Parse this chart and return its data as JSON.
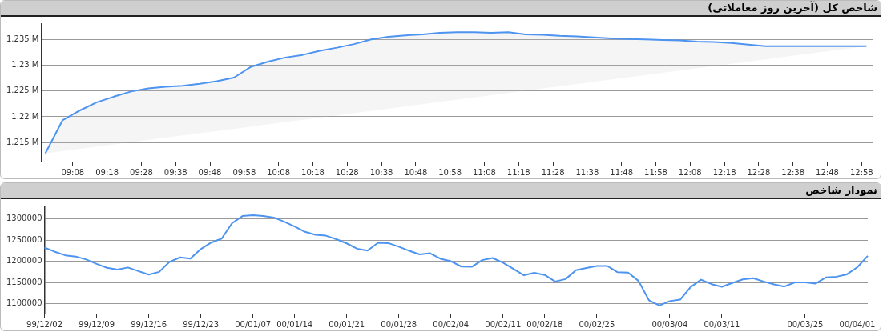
{
  "chart_data": [
    {
      "type": "area",
      "title": "شاخص کل (آخرین روز معاملاتی)",
      "series": [
        {
          "color": "#4d94f0",
          "x": [
            9.0,
            9.0833,
            9.1667,
            9.25,
            9.3333,
            9.4167,
            9.5,
            9.5833,
            9.6667,
            9.75,
            9.8333,
            9.9167,
            10.0,
            10.0833,
            10.1667,
            10.25,
            10.3333,
            10.4167,
            10.5,
            10.5833,
            10.6667,
            10.75,
            10.8333,
            10.9167,
            11.0,
            11.0833,
            11.1667,
            11.25,
            11.3333,
            11.4167,
            11.5,
            11.5833,
            11.6667,
            11.75,
            11.8333,
            11.9167,
            12.0,
            12.0833,
            12.1667,
            12.25,
            12.3333,
            12.4167,
            12.5,
            12.99
          ],
          "values": [
            1212900,
            1219300,
            1221200,
            1222800,
            1223900,
            1224900,
            1225500,
            1225800,
            1226000,
            1226400,
            1226900,
            1227600,
            1229700,
            1230700,
            1231500,
            1232000,
            1232800,
            1233400,
            1234100,
            1235000,
            1235500,
            1235800,
            1236000,
            1236300,
            1236400,
            1236400,
            1236300,
            1236400,
            1236000,
            1235900,
            1235700,
            1235600,
            1235400,
            1235200,
            1235100,
            1235000,
            1234900,
            1234800,
            1234600,
            1234500,
            1234300,
            1234000,
            1233700,
            1233700
          ]
        }
      ],
      "xlim": [
        8.98,
        13.02
      ],
      "xticks": [
        {
          "value": 9.1333,
          "label": "09:08"
        },
        {
          "value": 9.3,
          "label": "09:18"
        },
        {
          "value": 9.4667,
          "label": "09:28"
        },
        {
          "value": 9.6333,
          "label": "09:38"
        },
        {
          "value": 9.8,
          "label": "09:48"
        },
        {
          "value": 9.9667,
          "label": "09:58"
        },
        {
          "value": 10.1333,
          "label": "10:08"
        },
        {
          "value": 10.3,
          "label": "10:18"
        },
        {
          "value": 10.4667,
          "label": "10:28"
        },
        {
          "value": 10.6333,
          "label": "10:38"
        },
        {
          "value": 10.8,
          "label": "10:48"
        },
        {
          "value": 10.9667,
          "label": "10:58"
        },
        {
          "value": 11.1333,
          "label": "11:08"
        },
        {
          "value": 11.3,
          "label": "11:18"
        },
        {
          "value": 11.4667,
          "label": "11:28"
        },
        {
          "value": 11.6333,
          "label": "11:38"
        },
        {
          "value": 11.8,
          "label": "11:48"
        },
        {
          "value": 11.9667,
          "label": "11:58"
        },
        {
          "value": 12.1333,
          "label": "12:08"
        },
        {
          "value": 12.3,
          "label": "12:18"
        },
        {
          "value": 12.4667,
          "label": "12:28"
        },
        {
          "value": 12.6333,
          "label": "12:38"
        },
        {
          "value": 12.8,
          "label": "12:48"
        },
        {
          "value": 12.9667,
          "label": "12:58"
        }
      ],
      "ylim": [
        1211300,
        1238000
      ],
      "yticks": [
        {
          "value": 1215000,
          "label": "1.215 M"
        },
        {
          "value": 1220000,
          "label": "1.22 M"
        },
        {
          "value": 1225000,
          "label": "1.225 M"
        },
        {
          "value": 1230000,
          "label": "1.23 M"
        },
        {
          "value": 1235000,
          "label": "1.235 M"
        }
      ],
      "grid": "y",
      "legend": false
    },
    {
      "type": "line",
      "title": "نمودار شاخص",
      "categories": [
        "99/12/02",
        null,
        null,
        null,
        null,
        "99/12/09",
        null,
        null,
        null,
        null,
        "99/12/16",
        null,
        null,
        null,
        null,
        "99/12/23",
        null,
        null,
        null,
        null,
        "00/01/07",
        null,
        null,
        null,
        "00/01/14",
        null,
        null,
        null,
        null,
        "00/01/21",
        null,
        null,
        null,
        null,
        "00/01/28",
        null,
        null,
        null,
        null,
        "00/02/04",
        null,
        null,
        null,
        null,
        "00/02/11",
        null,
        null,
        null,
        "00/02/18",
        null,
        null,
        null,
        null,
        "00/02/25",
        null,
        null,
        null,
        null,
        null,
        null,
        "00/03/04",
        null,
        null,
        null,
        null,
        "00/03/11",
        null,
        null,
        null,
        null,
        null,
        null,
        null,
        "00/03/25",
        null,
        null,
        null,
        null,
        "00/04/01",
        null
      ],
      "series": [
        {
          "color": "#4d94f0",
          "values": [
            1232200,
            1222400,
            1214000,
            1211200,
            1204200,
            1193800,
            1184700,
            1180500,
            1185400,
            1177000,
            1168600,
            1175000,
            1198600,
            1209100,
            1206300,
            1228700,
            1244000,
            1253200,
            1289500,
            1306300,
            1308400,
            1306300,
            1302800,
            1293000,
            1281800,
            1269200,
            1262300,
            1260200,
            1251800,
            1242000,
            1229400,
            1225200,
            1243400,
            1242700,
            1234300,
            1224500,
            1216100,
            1218900,
            1206000,
            1200000,
            1187500,
            1186800,
            1202800,
            1207700,
            1196500,
            1181900,
            1167200,
            1172800,
            1167900,
            1152500,
            1158100,
            1179100,
            1184000,
            1188900,
            1188900,
            1174200,
            1173500,
            1153900,
            1108400,
            1095900,
            1106400,
            1109900,
            1139200,
            1156700,
            1146200,
            1139900,
            1149000,
            1157400,
            1160200,
            1152500,
            1145500,
            1140600,
            1150400,
            1150400,
            1147600,
            1162300,
            1163700,
            1169300,
            1186100,
            1212600
          ]
        }
      ],
      "ylim": [
        1077000,
        1329000
      ],
      "yticks": [
        1100000,
        1150000,
        1200000,
        1250000,
        1300000
      ],
      "grid": "y",
      "legend": false
    }
  ]
}
